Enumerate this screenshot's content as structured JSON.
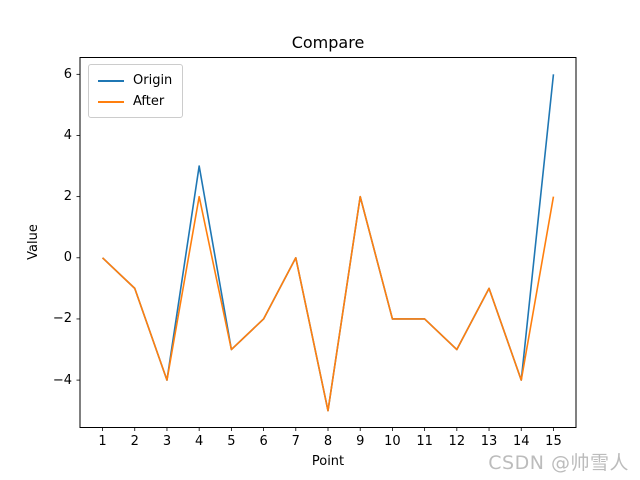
{
  "figure": {
    "watermark": "CSDN @帅雪人"
  },
  "chart_data": {
    "type": "line",
    "title": "Compare",
    "xlabel": "Point",
    "ylabel": "Value",
    "x": [
      1,
      2,
      3,
      4,
      5,
      6,
      7,
      8,
      9,
      10,
      11,
      12,
      13,
      14,
      15
    ],
    "series": [
      {
        "name": "Origin",
        "color": "#1f77b4",
        "values": [
          0,
          -1,
          -4,
          3,
          -3,
          -2,
          0,
          -5,
          2,
          -2,
          -2,
          -3,
          -1,
          -4,
          6
        ]
      },
      {
        "name": "After",
        "color": "#ff7f0e",
        "values": [
          0,
          -1,
          -4,
          2,
          -3,
          -2,
          0,
          -5,
          2,
          -2,
          -2,
          -3,
          -1,
          -4,
          2
        ]
      }
    ],
    "xlim": [
      0.3,
      15.7
    ],
    "ylim": [
      -5.55,
      6.55
    ],
    "xticks": [
      1,
      2,
      3,
      4,
      5,
      6,
      7,
      8,
      9,
      10,
      11,
      12,
      13,
      14,
      15
    ],
    "yticks": [
      -4,
      -2,
      0,
      2,
      4,
      6
    ],
    "grid": false,
    "legend_position": "upper left"
  }
}
